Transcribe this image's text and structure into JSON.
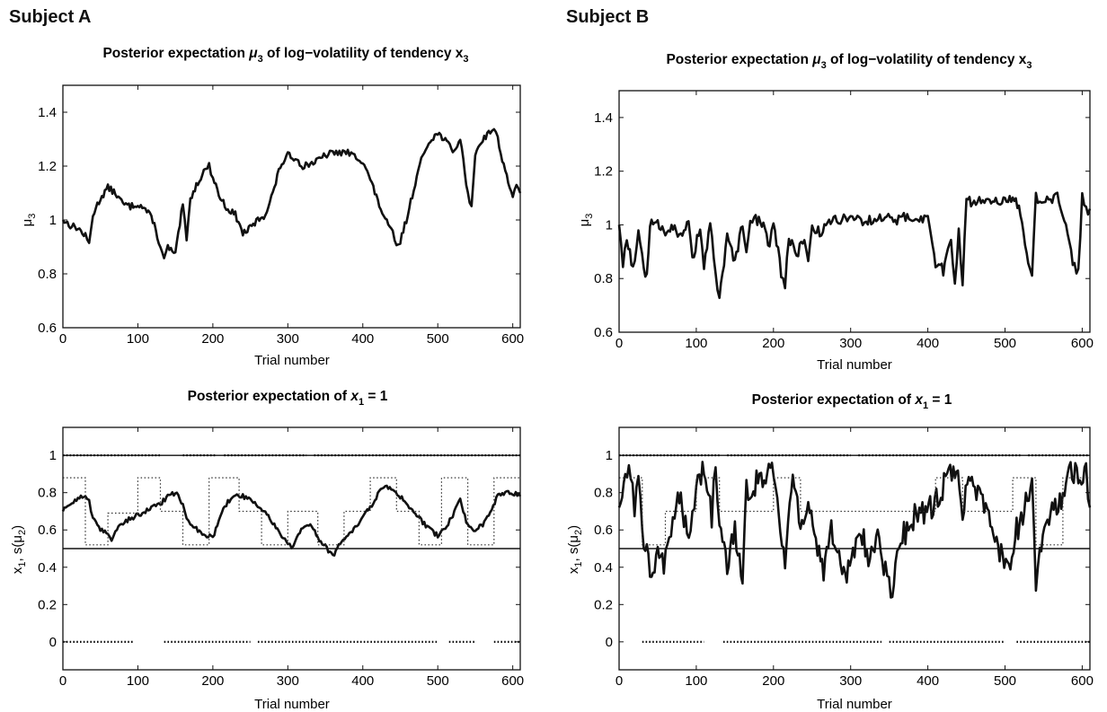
{
  "subjects": [
    {
      "name": "Subject A",
      "panels": {
        "top": {
          "title_prefix": "Posterior expectation ",
          "title_mu": "μ",
          "title_mu_sub": "3",
          "title_mid": " of log−volatility of tendency x",
          "title_x_sub": "3",
          "ylabel_main": "μ",
          "ylabel_sub": "3",
          "xlabel": "Trial number"
        },
        "bottom": {
          "title_prefix": "Posterior expectation of ",
          "title_x": "x",
          "title_x_sub": "1",
          "title_suffix": " = 1",
          "ylabel_main": "x",
          "ylabel_sub1": "1",
          "ylabel_mid": ", s(μ",
          "ylabel_sub2": "2",
          "ylabel_end": ")",
          "xlabel": "Trial number"
        }
      }
    },
    {
      "name": "Subject B",
      "panels": {
        "top": {
          "title_prefix": "Posterior expectation ",
          "title_mu": "μ",
          "title_mu_sub": "3",
          "title_mid": " of log−volatility of tendency x",
          "title_x_sub": "3",
          "ylabel_main": "μ",
          "ylabel_sub": "3",
          "xlabel": "Trial number"
        },
        "bottom": {
          "title_prefix": "Posterior expectation of ",
          "title_x": "x",
          "title_x_sub": "1",
          "title_suffix": " = 1",
          "ylabel_main": "x",
          "ylabel_sub1": "1",
          "ylabel_mid": ", s(μ",
          "ylabel_sub2": "2",
          "ylabel_end": ")",
          "xlabel": "Trial number"
        }
      }
    }
  ],
  "chart_data": [
    {
      "id": "A-top",
      "type": "line",
      "xlim": [
        0,
        610
      ],
      "ylim": [
        0.6,
        1.5
      ],
      "xticks": [
        "0",
        "100",
        "200",
        "300",
        "400",
        "500",
        "600"
      ],
      "yticks": [
        "0.6",
        "0.8",
        "1",
        "1.2",
        "1.4"
      ],
      "line_color": "#111111",
      "noise": 0.012,
      "series": [
        {
          "x": [
            0,
            10,
            20,
            30,
            35,
            40,
            50,
            60,
            70,
            80,
            90,
            100,
            110,
            120,
            130,
            135,
            140,
            150,
            160,
            165,
            170,
            180,
            190,
            195,
            200,
            210,
            220,
            230,
            240,
            250,
            260,
            270,
            280,
            290,
            300,
            310,
            320,
            330,
            340,
            350,
            360,
            380,
            400,
            410,
            420,
            430,
            440,
            445,
            450,
            460,
            470,
            480,
            490,
            500,
            510,
            520,
            530,
            540,
            545,
            550,
            560,
            570,
            575,
            580,
            590,
            600,
            605,
            610
          ],
          "y": [
            1.0,
            0.98,
            0.97,
            0.94,
            0.91,
            1.02,
            1.08,
            1.12,
            1.1,
            1.06,
            1.05,
            1.06,
            1.04,
            1.0,
            0.9,
            0.85,
            0.9,
            0.87,
            1.06,
            0.92,
            1.08,
            1.14,
            1.19,
            1.2,
            1.16,
            1.08,
            1.04,
            1.02,
            0.95,
            0.97,
            1.0,
            1.02,
            1.1,
            1.2,
            1.24,
            1.23,
            1.2,
            1.21,
            1.22,
            1.24,
            1.25,
            1.25,
            1.22,
            1.15,
            1.07,
            1.0,
            0.95,
            0.9,
            0.92,
            1.02,
            1.14,
            1.24,
            1.3,
            1.32,
            1.3,
            1.25,
            1.3,
            1.1,
            1.04,
            1.25,
            1.3,
            1.33,
            1.34,
            1.3,
            1.18,
            1.09,
            1.12,
            1.1
          ]
        }
      ]
    },
    {
      "id": "B-top",
      "type": "line",
      "xlim": [
        0,
        610
      ],
      "ylim": [
        0.6,
        1.5
      ],
      "xticks": [
        "0",
        "100",
        "200",
        "300",
        "400",
        "500",
        "600"
      ],
      "yticks": [
        "0.6",
        "0.8",
        "1",
        "1.2",
        "1.4"
      ],
      "line_color": "#111111",
      "noise": 0.02,
      "series": [
        {
          "x": [
            0,
            5,
            10,
            18,
            25,
            32,
            36,
            40,
            50,
            60,
            70,
            80,
            90,
            95,
            105,
            110,
            118,
            125,
            130,
            140,
            150,
            160,
            165,
            170,
            175,
            185,
            195,
            200,
            210,
            215,
            220,
            230,
            240,
            245,
            250,
            260,
            270,
            280,
            300,
            320,
            340,
            360,
            380,
            400,
            410,
            420,
            430,
            435,
            440,
            445,
            450,
            460,
            480,
            490,
            500,
            510,
            520,
            530,
            535,
            540,
            545,
            550,
            570,
            590,
            595,
            600,
            605,
            610
          ],
          "y": [
            1.0,
            0.86,
            0.95,
            0.84,
            0.96,
            0.85,
            0.8,
            1.0,
            1.0,
            0.98,
            1.0,
            0.95,
            1.01,
            0.86,
            1.0,
            0.84,
            1.0,
            0.82,
            0.72,
            0.95,
            0.86,
            1.0,
            0.88,
            1.01,
            1.02,
            1.01,
            0.92,
            1.02,
            0.82,
            0.77,
            0.96,
            0.88,
            0.96,
            0.85,
            1.0,
            0.97,
            1.0,
            1.02,
            1.03,
            1.01,
            1.03,
            1.02,
            1.03,
            1.02,
            0.86,
            0.83,
            0.95,
            0.78,
            0.98,
            0.79,
            1.09,
            1.08,
            1.1,
            1.09,
            1.1,
            1.1,
            1.05,
            0.87,
            0.82,
            1.1,
            1.08,
            1.1,
            1.1,
            0.84,
            0.82,
            1.1,
            1.05,
            1.06
          ]
        }
      ]
    },
    {
      "id": "A-bottom",
      "type": "line",
      "xlim": [
        0,
        610
      ],
      "ylim": [
        -0.15,
        1.15
      ],
      "xticks": [
        "0",
        "100",
        "200",
        "300",
        "400",
        "500",
        "600"
      ],
      "yticks": [
        "0",
        "0.2",
        "0.4",
        "0.6",
        "0.8",
        "1"
      ],
      "reference_line": 0.5,
      "line_color": "#111111",
      "noise": 0.012,
      "series": [
        {
          "style": "solid",
          "x": [
            0,
            10,
            20,
            30,
            35,
            40,
            50,
            60,
            65,
            70,
            80,
            90,
            100,
            110,
            120,
            130,
            140,
            150,
            160,
            165,
            170,
            180,
            190,
            200,
            210,
            220,
            230,
            240,
            250,
            260,
            270,
            280,
            290,
            300,
            305,
            310,
            320,
            330,
            340,
            350,
            360,
            370,
            380,
            390,
            400,
            410,
            420,
            430,
            440,
            450,
            460,
            470,
            480,
            490,
            500,
            510,
            520,
            530,
            540,
            550,
            560,
            570,
            580,
            590,
            600,
            610
          ],
          "y": [
            0.7,
            0.74,
            0.77,
            0.79,
            0.75,
            0.66,
            0.6,
            0.58,
            0.55,
            0.6,
            0.64,
            0.66,
            0.68,
            0.7,
            0.72,
            0.74,
            0.78,
            0.8,
            0.74,
            0.66,
            0.62,
            0.6,
            0.57,
            0.56,
            0.68,
            0.75,
            0.79,
            0.78,
            0.76,
            0.73,
            0.7,
            0.64,
            0.57,
            0.53,
            0.5,
            0.55,
            0.61,
            0.63,
            0.56,
            0.51,
            0.46,
            0.53,
            0.57,
            0.61,
            0.67,
            0.72,
            0.79,
            0.84,
            0.82,
            0.78,
            0.73,
            0.69,
            0.64,
            0.6,
            0.57,
            0.61,
            0.68,
            0.76,
            0.62,
            0.6,
            0.63,
            0.7,
            0.78,
            0.8,
            0.8,
            0.78
          ]
        },
        {
          "style": "dotted",
          "x": [
            0,
            30,
            30,
            60,
            60,
            100,
            100,
            130,
            130,
            160,
            160,
            195,
            195,
            235,
            235,
            265,
            265,
            300,
            300,
            340,
            340,
            375,
            375,
            410,
            410,
            445,
            445,
            475,
            475,
            505,
            505,
            540,
            540,
            575,
            575,
            610
          ],
          "y": [
            0.88,
            0.88,
            0.52,
            0.52,
            0.69,
            0.69,
            0.88,
            0.88,
            0.7,
            0.7,
            0.52,
            0.52,
            0.88,
            0.88,
            0.7,
            0.7,
            0.52,
            0.52,
            0.7,
            0.7,
            0.52,
            0.52,
            0.7,
            0.7,
            0.88,
            0.88,
            0.7,
            0.7,
            0.52,
            0.52,
            0.88,
            0.88,
            0.52,
            0.52,
            0.88,
            0.88
          ]
        }
      ],
      "dots_at_1": [
        [
          0,
          130
        ],
        [
          160,
          205
        ],
        [
          215,
          325
        ],
        [
          335,
          610
        ]
      ],
      "dots_at_0": [
        [
          0,
          95
        ],
        [
          135,
          250
        ],
        [
          260,
          500
        ],
        [
          515,
          550
        ],
        [
          575,
          610
        ]
      ]
    },
    {
      "id": "B-bottom",
      "type": "line",
      "xlim": [
        0,
        610
      ],
      "ylim": [
        -0.15,
        1.15
      ],
      "xticks": [
        "0",
        "100",
        "200",
        "300",
        "400",
        "500",
        "600"
      ],
      "yticks": [
        "0",
        "0.2",
        "0.4",
        "0.6",
        "0.8",
        "1"
      ],
      "reference_line": 0.5,
      "line_color": "#111111",
      "noise": 0.07,
      "series": [
        {
          "style": "solid",
          "x": [
            0,
            8,
            15,
            20,
            25,
            30,
            38,
            42,
            50,
            58,
            65,
            72,
            80,
            88,
            95,
            100,
            110,
            120,
            125,
            130,
            140,
            150,
            160,
            165,
            172,
            180,
            190,
            198,
            205,
            215,
            225,
            235,
            245,
            255,
            265,
            275,
            285,
            295,
            305,
            315,
            325,
            335,
            345,
            352,
            358,
            365,
            375,
            385,
            395,
            405,
            415,
            425,
            435,
            445,
            455,
            465,
            475,
            485,
            495,
            505,
            515,
            525,
            535,
            540,
            545,
            555,
            565,
            575,
            585,
            595,
            605,
            610
          ],
          "y": [
            0.72,
            0.88,
            0.9,
            0.72,
            0.88,
            0.6,
            0.46,
            0.36,
            0.5,
            0.38,
            0.56,
            0.68,
            0.82,
            0.55,
            0.72,
            0.83,
            0.92,
            0.68,
            0.94,
            0.58,
            0.42,
            0.58,
            0.38,
            0.85,
            0.78,
            0.91,
            0.88,
            0.94,
            0.78,
            0.42,
            0.9,
            0.65,
            0.73,
            0.5,
            0.38,
            0.62,
            0.45,
            0.35,
            0.48,
            0.58,
            0.42,
            0.6,
            0.38,
            0.24,
            0.38,
            0.55,
            0.62,
            0.7,
            0.68,
            0.72,
            0.78,
            0.9,
            0.94,
            0.72,
            0.9,
            0.78,
            0.72,
            0.55,
            0.48,
            0.4,
            0.6,
            0.7,
            0.88,
            0.32,
            0.5,
            0.62,
            0.72,
            0.78,
            0.95,
            0.85,
            0.9,
            0.72
          ]
        },
        {
          "style": "dotted",
          "x": [
            0,
            30,
            30,
            60,
            60,
            100,
            100,
            130,
            130,
            200,
            200,
            235,
            235,
            410,
            410,
            445,
            445,
            510,
            510,
            540,
            540,
            575,
            575,
            610
          ],
          "y": [
            0.88,
            0.88,
            0.52,
            0.52,
            0.7,
            0.7,
            0.88,
            0.88,
            0.7,
            0.7,
            0.88,
            0.88,
            0.7,
            0.7,
            0.88,
            0.88,
            0.7,
            0.7,
            0.88,
            0.88,
            0.52,
            0.52,
            0.88,
            0.88
          ]
        }
      ],
      "dots_at_1": [
        [
          0,
          130
        ],
        [
          140,
          300
        ],
        [
          310,
          520
        ],
        [
          530,
          610
        ]
      ],
      "dots_at_0": [
        [
          30,
          110
        ],
        [
          135,
          340
        ],
        [
          350,
          500
        ],
        [
          515,
          610
        ]
      ]
    }
  ]
}
